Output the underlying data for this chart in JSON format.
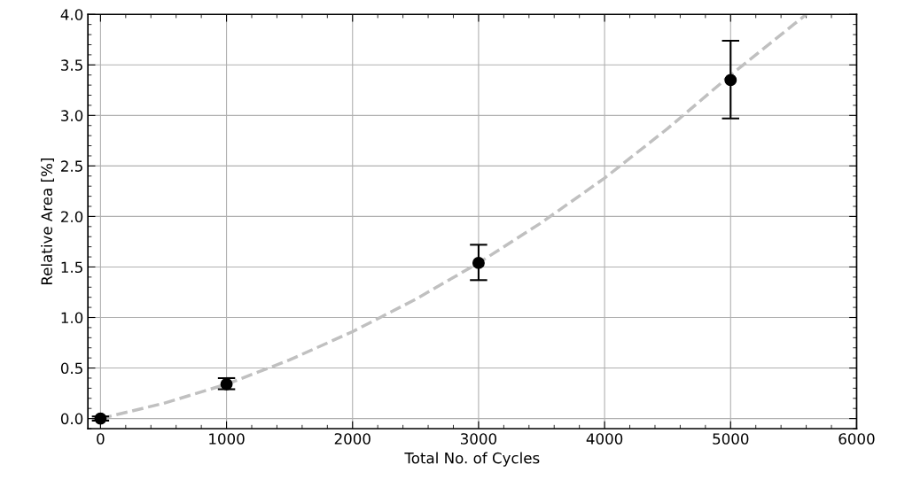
{
  "chart_data": {
    "type": "scatter",
    "xlabel": "Total No. of Cycles",
    "ylabel": "Relative Area [%]",
    "xlim": [
      -100,
      6000
    ],
    "ylim": [
      -0.1,
      4.0
    ],
    "xticks": [
      0,
      1000,
      2000,
      3000,
      4000,
      5000,
      6000
    ],
    "yticks": [
      {
        "value": 0,
        "label": "0.0"
      },
      {
        "value": 0.5,
        "label": "0.5"
      },
      {
        "value": 1,
        "label": "1.0"
      },
      {
        "value": 1.5,
        "label": "1.5"
      },
      {
        "value": 2,
        "label": "2.0"
      },
      {
        "value": 2.5,
        "label": "2.5"
      },
      {
        "value": 3,
        "label": "3.0"
      },
      {
        "value": 3.5,
        "label": "3.5"
      },
      {
        "value": 4,
        "label": "4.0"
      }
    ],
    "grid": true,
    "series": [
      {
        "type": "line",
        "color": "#c0c0c0",
        "line_style": "dashed",
        "marker": "none",
        "x": [
          0,
          500,
          1000,
          1500,
          2000,
          2500,
          3000,
          3500,
          4000,
          4500,
          5000,
          5500,
          5600
        ],
        "values": [
          0,
          0.15,
          0.34,
          0.58,
          0.86,
          1.18,
          1.54,
          1.94,
          2.38,
          2.87,
          3.4,
          3.9,
          4.0
        ]
      },
      {
        "color": "#000000",
        "marker": "circle",
        "x": [
          0,
          1000,
          3000,
          5000
        ],
        "values": [
          0,
          0.34,
          1.54,
          3.35
        ],
        "errors": [
          0.02,
          [
            0.29,
            0.4
          ],
          [
            1.37,
            1.72
          ],
          [
            2.97,
            3.74
          ]
        ]
      }
    ]
  }
}
